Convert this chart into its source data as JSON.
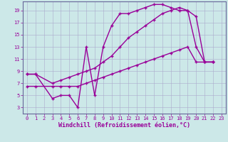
{
  "xlabel": "Windchill (Refroidissement éolien,°C)",
  "background_color": "#cce8e8",
  "grid_color": "#aaaacc",
  "line_color": "#990099",
  "xlim": [
    -0.5,
    23.5
  ],
  "ylim": [
    2,
    20.5
  ],
  "yticks": [
    3,
    5,
    7,
    9,
    11,
    13,
    15,
    17,
    19
  ],
  "xticks": [
    0,
    1,
    2,
    3,
    4,
    5,
    6,
    7,
    8,
    9,
    10,
    11,
    12,
    13,
    14,
    15,
    16,
    17,
    18,
    19,
    20,
    21,
    22,
    23
  ],
  "line1_x": [
    0,
    1,
    3,
    4,
    5,
    6,
    7,
    8,
    9,
    10,
    11,
    12,
    13,
    14,
    15,
    16,
    17,
    18,
    19,
    20,
    21,
    22
  ],
  "line1_y": [
    8.5,
    8.5,
    4.5,
    5.0,
    5.0,
    3.0,
    13.0,
    5.0,
    13.0,
    16.5,
    18.5,
    18.5,
    19.0,
    19.5,
    20.0,
    20.0,
    19.5,
    19.0,
    19.0,
    13.0,
    10.5,
    10.5
  ],
  "line2_x": [
    0,
    1,
    3,
    4,
    5,
    6,
    7,
    8,
    9,
    10,
    11,
    12,
    13,
    14,
    15,
    16,
    17,
    18,
    19,
    20,
    21,
    22
  ],
  "line2_y": [
    8.5,
    8.5,
    7.0,
    7.5,
    8.0,
    8.5,
    9.0,
    9.5,
    10.5,
    11.5,
    13.0,
    14.5,
    15.5,
    16.5,
    17.5,
    18.5,
    19.0,
    19.5,
    19.0,
    18.0,
    10.5,
    10.5
  ],
  "line3_x": [
    0,
    1,
    3,
    4,
    5,
    6,
    7,
    8,
    9,
    10,
    11,
    12,
    13,
    14,
    15,
    16,
    17,
    18,
    19,
    20,
    21,
    22
  ],
  "line3_y": [
    6.5,
    6.5,
    6.5,
    6.5,
    6.5,
    6.5,
    7.0,
    7.5,
    8.0,
    8.5,
    9.0,
    9.5,
    10.0,
    10.5,
    11.0,
    11.5,
    12.0,
    12.5,
    13.0,
    10.5,
    10.5,
    10.5
  ],
  "marker": "+",
  "marker_size": 3,
  "line_width": 1.0,
  "xlabel_fontsize": 6.0,
  "tick_fontsize": 5.0
}
